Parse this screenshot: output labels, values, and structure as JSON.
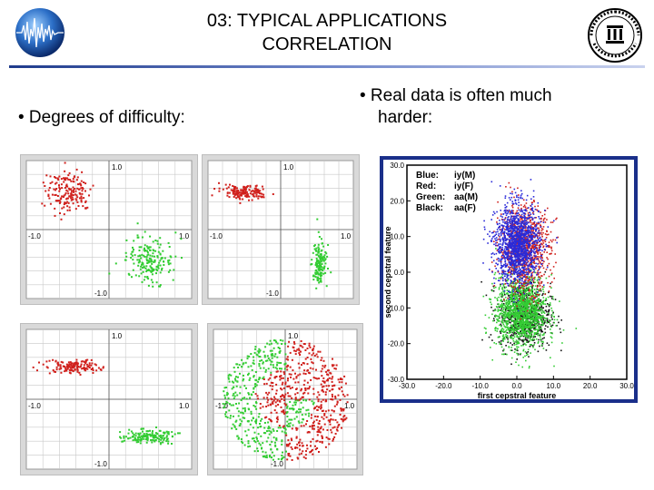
{
  "header": {
    "title_line1": "03: TYPICAL APPLICATIONS",
    "title_line2": "CORRELATION"
  },
  "logos": {
    "left": "globe-waveform-logo",
    "right": "university-seal-logo"
  },
  "bullets": {
    "left": "• Degrees of difficulty:",
    "right_line1": "• Real data is often much",
    "right_line2": "harder:"
  },
  "colors": {
    "red": "#d0201c",
    "green": "#33cc33",
    "blue": "#2a2ad8",
    "black": "#111111",
    "frame": "#1a2f8a",
    "rule": "#1f3b8c"
  },
  "synthetic_panels": [
    {
      "name": "panel-1",
      "ticks": {
        "top": "1.0",
        "left": "-1.0",
        "right": "1.0",
        "bottom": "-1.0"
      }
    },
    {
      "name": "panel-2",
      "ticks": {
        "top": "1.0",
        "left": "-1.0",
        "right": "1.0",
        "bottom": "-1.0"
      }
    },
    {
      "name": "panel-3",
      "ticks": {
        "top": "1.0",
        "left": "-1.0",
        "right": "1.0",
        "bottom": "-1.0"
      }
    },
    {
      "name": "panel-4",
      "ticks": {
        "top": "1.0",
        "left": "-1.0",
        "right": "1.0",
        "bottom": "-1.0"
      }
    }
  ],
  "chart_data": {
    "type": "scatter",
    "xlabel": "first cepstral feature",
    "ylabel": "second cepstral feature",
    "xlim": [
      -30,
      30
    ],
    "ylim": [
      -30,
      30
    ],
    "x_ticks": [
      "-30.0",
      "-20.0",
      "-10.0",
      "0.0",
      "10.0",
      "20.0",
      "30.0"
    ],
    "y_ticks": [
      "30.0",
      "20.0",
      "10.0",
      "0.0",
      "-10.0",
      "-20.0",
      "-30.0"
    ],
    "legend": [
      {
        "color": "Blue:",
        "label": "iy(M)"
      },
      {
        "color": "Red:",
        "label": "iy(F)"
      },
      {
        "color": "Green:",
        "label": "aa(M)"
      },
      {
        "color": "Black:",
        "label": "aa(F)"
      }
    ],
    "legend_position": "top-left",
    "series": [
      {
        "name": "iy(M)",
        "color": "#2a2ad8",
        "center": [
          0,
          8
        ],
        "spread": [
          3,
          5.5
        ]
      },
      {
        "name": "iy(F)",
        "color": "#d0201c",
        "center": [
          2,
          7
        ],
        "spread": [
          3.5,
          6
        ]
      },
      {
        "name": "aa(M)",
        "color": "#33cc33",
        "center": [
          1,
          -11
        ],
        "spread": [
          3.5,
          5
        ]
      },
      {
        "name": "aa(F)",
        "color": "#111111",
        "center": [
          2,
          -12
        ],
        "spread": [
          3.5,
          4.5
        ]
      }
    ]
  }
}
